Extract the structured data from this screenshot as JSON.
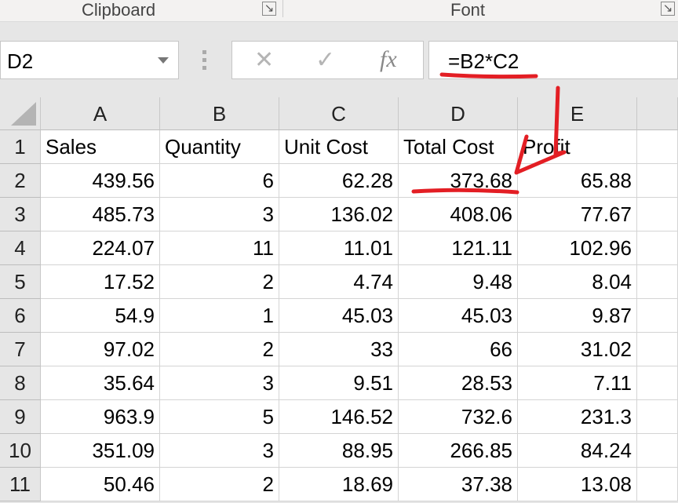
{
  "ribbon": {
    "groups": [
      {
        "label": "Clipboard"
      },
      {
        "label": "Font"
      }
    ]
  },
  "formula_bar": {
    "name_box": "D2",
    "cancel_icon": "✕",
    "enter_icon": "✓",
    "fx_label": "fx",
    "formula": "=B2*C2"
  },
  "columns": [
    "A",
    "B",
    "C",
    "D",
    "E",
    ""
  ],
  "rows": [
    [
      "Sales",
      "Quantity",
      "Unit Cost",
      "Total Cost",
      "Profit"
    ],
    [
      "439.56",
      "6",
      "62.28",
      "373.68",
      "65.88"
    ],
    [
      "485.73",
      "3",
      "136.02",
      "408.06",
      "77.67"
    ],
    [
      "224.07",
      "11",
      "11.01",
      "121.11",
      "102.96"
    ],
    [
      "17.52",
      "2",
      "4.74",
      "9.48",
      "8.04"
    ],
    [
      "54.9",
      "1",
      "45.03",
      "45.03",
      "9.87"
    ],
    [
      "97.02",
      "2",
      "33",
      "66",
      "31.02"
    ],
    [
      "35.64",
      "3",
      "9.51",
      "28.53",
      "7.11"
    ],
    [
      "963.9",
      "5",
      "146.52",
      "732.6",
      "231.3"
    ],
    [
      "351.09",
      "3",
      "88.95",
      "266.85",
      "84.24"
    ],
    [
      "50.46",
      "2",
      "18.69",
      "37.38",
      "13.08"
    ]
  ],
  "annotation_color": "#e31e24"
}
